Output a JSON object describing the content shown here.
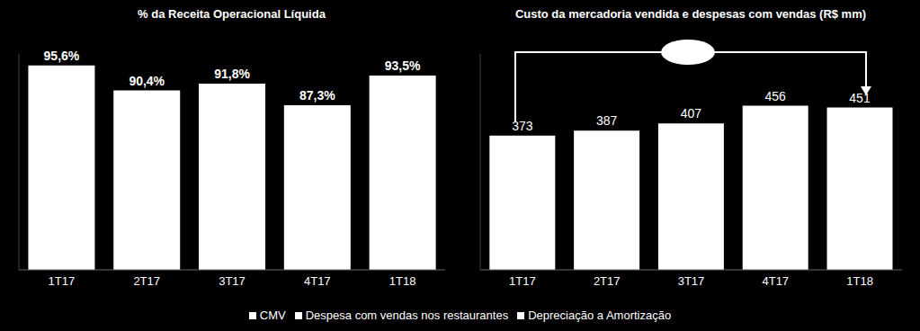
{
  "chart_data": [
    {
      "type": "bar",
      "title": "% da Receita Operacional Líquida",
      "categories": [
        "1T17",
        "2T17",
        "3T17",
        "4T17",
        "1T18"
      ],
      "values": [
        95.6,
        90.4,
        91.8,
        87.3,
        93.5
      ],
      "value_labels": [
        "95,6%",
        "90,4%",
        "91,8%",
        "87,3%",
        "93,5%"
      ],
      "color": "#ffffff",
      "ylim": [
        53,
        98
      ],
      "data_labels": true,
      "tick_labels": "x"
    },
    {
      "type": "bar",
      "title": "Custo da mercadoria vendida e despesas com vendas (R$ mm)",
      "categories": [
        "1T17",
        "2T17",
        "3T17",
        "4T17",
        "1T18"
      ],
      "values": [
        373,
        387,
        407,
        456,
        451
      ],
      "color": "#ffffff",
      "ylim": [
        0,
        600
      ],
      "data_labels": true,
      "tick_labels": "x"
    }
  ],
  "footer": {
    "legend_items": [
      "CMV",
      "Despesa com vendas nos restaurantes",
      "Depreciação a Amortização"
    ]
  }
}
